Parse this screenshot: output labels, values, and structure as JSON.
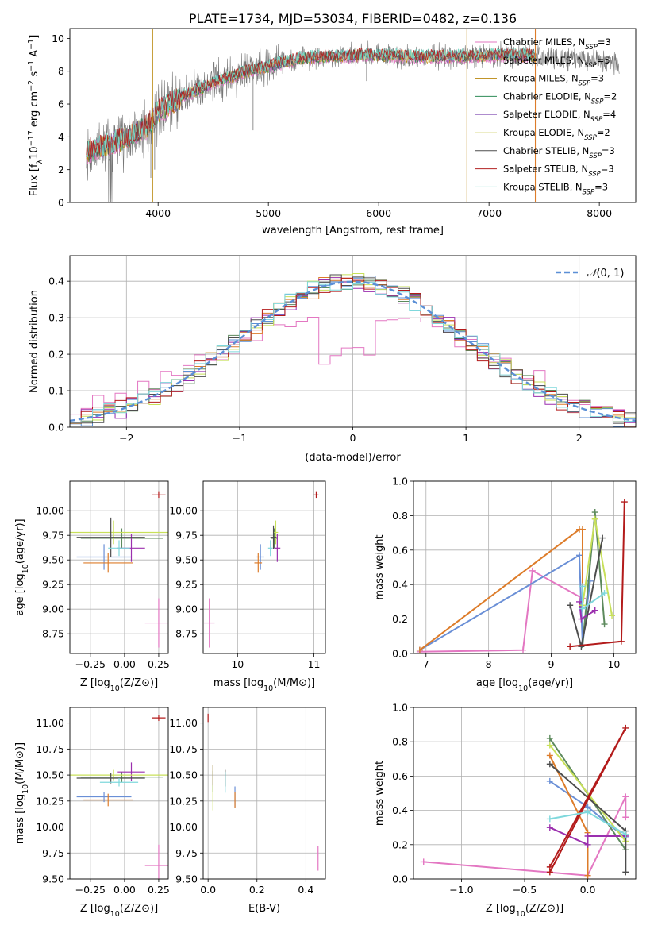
{
  "colors": {
    "Chabrier MILES": "#e377c2",
    "Salpeter MILES": "#e377c2",
    "Kroupa MILES": "#b8860b",
    "Chabrier ELODIE": "#2e8b57",
    "Salpeter ELODIE": "#9467bd",
    "Kroupa ELODIE": "#dbdb8d",
    "Chabrier STELIB": "#4d4d4d",
    "Salpeter STELIB": "#b22222",
    "Kroupa STELIB": "#76d7c4"
  },
  "panel_colors": [
    "#e377c2",
    "#6a8fd6",
    "#dd7c2a",
    "#5d8a5d",
    "#9b2fae",
    "#c8e05a",
    "#4d4d4d",
    "#b31b1b",
    "#7fd8dc"
  ],
  "chart_data": [
    {
      "id": "spectrum",
      "type": "line",
      "title": "PLATE=1734, MJD=53034, FIBERID=0482, z=0.136",
      "xlabel": "wavelength [Angstrom, rest frame]",
      "ylabel_parts": [
        "Flux [f",
        "λ",
        "10",
        "−17",
        " erg cm",
        "−2",
        " s",
        "−1",
        " A",
        "−1",
        "]"
      ],
      "xlim": [
        3200,
        8330
      ],
      "ylim": [
        0,
        10.6
      ],
      "xticks": [
        4000,
        5000,
        6000,
        7000,
        8000
      ],
      "yticks": [
        0,
        2,
        4,
        6,
        8,
        10
      ],
      "grid": false,
      "legend_position": "top-right",
      "legend": [
        {
          "label": "Chabrier MILES, N",
          "sub": "SSP",
          "eq": "=3"
        },
        {
          "label": "Salpeter MILES, N",
          "sub": "SSP",
          "eq": "=5"
        },
        {
          "label": "Kroupa MILES, N",
          "sub": "SSP",
          "eq": "=3"
        },
        {
          "label": "Chabrier ELODIE, N",
          "sub": "SSP",
          "eq": "=2"
        },
        {
          "label": "Salpeter ELODIE, N",
          "sub": "SSP",
          "eq": "=4"
        },
        {
          "label": "Kroupa ELODIE, N",
          "sub": "SSP",
          "eq": "=2"
        },
        {
          "label": "Chabrier STELIB, N",
          "sub": "SSP",
          "eq": "=3"
        },
        {
          "label": "Salpeter STELIB, N",
          "sub": "SSP",
          "eq": "=3"
        },
        {
          "label": "Kroupa STELIB, N",
          "sub": "SSP",
          "eq": "=3"
        }
      ],
      "continuum": {
        "x": [
          3350,
          3500,
          3700,
          3900,
          4000,
          4200,
          4500,
          4800,
          5000,
          5300,
          5600,
          6000,
          6300,
          6600,
          7000,
          7200,
          7400,
          7600,
          8000,
          8200
        ],
        "y": [
          3.1,
          3.4,
          3.9,
          4.6,
          5.5,
          6.4,
          7.3,
          8.0,
          8.3,
          8.8,
          8.9,
          9.0,
          8.9,
          8.9,
          8.95,
          9.0,
          8.95,
          8.8,
          8.6,
          8.5
        ]
      },
      "data_xrange": [
        3350,
        8180
      ],
      "model_xrange": [
        3350,
        7420
      ],
      "vertical_lines": [
        {
          "x": 3950,
          "color": "#b8860b"
        },
        {
          "x": 6800,
          "color": "#b8860b"
        },
        {
          "x": 7420,
          "color": "#dd7c2a"
        }
      ]
    },
    {
      "id": "residuals",
      "type": "histogram",
      "xlabel": "(data-model)/error",
      "ylabel": "Normed distribution",
      "xlim": [
        -2.5,
        2.5
      ],
      "ylim": [
        0,
        0.47
      ],
      "xticks": [
        -2,
        -1,
        0,
        1,
        2
      ],
      "yticks": [
        0.0,
        0.1,
        0.2,
        0.3,
        0.4
      ],
      "grid": true,
      "legend_position": "top-right",
      "legend": {
        "label": "N(0,1)",
        "symbol": "𝒩",
        "args": "(0, 1)",
        "color": "#5b8fd6"
      },
      "bin_width": 0.1,
      "gaussian": {
        "mean": 0,
        "sigma": 1
      }
    },
    {
      "id": "age-vs-Z",
      "type": "scatter",
      "xlabel_parts": [
        "Z [log",
        "10",
        "(Z/Z",
        "⊙",
        ")]"
      ],
      "ylabel_parts": [
        "age  [log",
        "10",
        "(age/yr)]"
      ],
      "xlim": [
        -0.4,
        0.32
      ],
      "ylim": [
        8.55,
        10.3
      ],
      "xticks": [
        -0.25,
        0.0,
        0.25
      ],
      "yticks": [
        8.75,
        9.0,
        9.25,
        9.5,
        9.75,
        10.0
      ],
      "grid": true,
      "points": [
        {
          "x": 0.25,
          "y": 8.86,
          "xerr": 0.1,
          "yerr": 0.25
        },
        {
          "x": -0.15,
          "y": 9.53,
          "xerr": 0.2,
          "yerr": 0.13
        },
        {
          "x": -0.12,
          "y": 9.47,
          "xerr": 0.18,
          "yerr": 0.1
        },
        {
          "x": -0.02,
          "y": 9.72,
          "xerr": 0.3,
          "yerr": 0.1
        },
        {
          "x": 0.05,
          "y": 9.62,
          "xerr": 0.1,
          "yerr": 0.14
        },
        {
          "x": -0.08,
          "y": 9.78,
          "xerr": 0.4,
          "yerr": 0.12
        },
        {
          "x": -0.1,
          "y": 9.73,
          "xerr": 0.25,
          "yerr": 0.2
        },
        {
          "x": 0.25,
          "y": 10.16,
          "xerr": 0.05,
          "yerr": 0.03
        },
        {
          "x": -0.04,
          "y": 9.62,
          "xerr": 0.08,
          "yerr": 0.08
        }
      ]
    },
    {
      "id": "age-vs-mass",
      "type": "scatter",
      "xlabel_parts": [
        "mass [log",
        "10",
        "(M/M",
        "⊙",
        ")]"
      ],
      "xlim": [
        9.55,
        11.15
      ],
      "ylim": [
        8.55,
        10.3
      ],
      "xticks": [
        10,
        11
      ],
      "yticks": [
        8.75,
        9.0,
        9.25,
        9.5,
        9.75,
        10.0
      ],
      "grid": true,
      "points": [
        {
          "x": 9.63,
          "y": 8.86,
          "xerr": 0.07,
          "yerr": 0.25
        },
        {
          "x": 10.3,
          "y": 9.53,
          "xerr": 0.05,
          "yerr": 0.13
        },
        {
          "x": 10.27,
          "y": 9.47,
          "xerr": 0.05,
          "yerr": 0.1
        },
        {
          "x": 10.48,
          "y": 9.72,
          "xerr": 0.04,
          "yerr": 0.1
        },
        {
          "x": 10.52,
          "y": 9.62,
          "xerr": 0.04,
          "yerr": 0.14
        },
        {
          "x": 10.5,
          "y": 9.78,
          "xerr": 0.03,
          "yerr": 0.12
        },
        {
          "x": 10.47,
          "y": 9.73,
          "xerr": 0.04,
          "yerr": 0.12
        },
        {
          "x": 11.03,
          "y": 10.16,
          "xerr": 0.03,
          "yerr": 0.03
        },
        {
          "x": 10.43,
          "y": 9.62,
          "xerr": 0.03,
          "yerr": 0.08
        }
      ]
    },
    {
      "id": "massweight-vs-age",
      "type": "line",
      "xlabel_parts": [
        "age  [log",
        "10",
        "(age/yr)]"
      ],
      "ylabel": "mass weight",
      "xlim": [
        6.8,
        10.35
      ],
      "ylim": [
        0,
        1.0
      ],
      "xticks": [
        7,
        8,
        9,
        10
      ],
      "yticks": [
        0.0,
        0.2,
        0.4,
        0.6,
        0.8,
        1.0
      ],
      "grid": true,
      "series": [
        {
          "x": [
            6.9,
            8.55,
            8.7,
            9.5
          ],
          "y": [
            0.01,
            0.02,
            0.48,
            0.32
          ]
        },
        {
          "x": [
            6.9,
            9.45,
            9.5,
            9.62
          ],
          "y": [
            0.02,
            0.57,
            0.05,
            0.42
          ]
        },
        {
          "x": [
            6.9,
            9.45,
            9.5,
            9.5
          ],
          "y": [
            0.02,
            0.72,
            0.72,
            0.27
          ]
        },
        {
          "x": [
            9.5,
            9.7,
            9.85
          ],
          "y": [
            0.05,
            0.82,
            0.17
          ]
        },
        {
          "x": [
            9.45,
            9.48,
            9.7
          ],
          "y": [
            0.3,
            0.2,
            0.25
          ]
        },
        {
          "x": [
            9.5,
            9.7,
            9.97
          ],
          "y": [
            0.28,
            0.78,
            0.22
          ]
        },
        {
          "x": [
            9.3,
            9.48,
            9.82
          ],
          "y": [
            0.28,
            0.04,
            0.67
          ]
        },
        {
          "x": [
            9.3,
            10.12,
            10.17
          ],
          "y": [
            0.04,
            0.07,
            0.88
          ]
        },
        {
          "x": [
            9.5,
            9.5,
            9.85
          ],
          "y": [
            0.39,
            0.26,
            0.35
          ]
        }
      ]
    },
    {
      "id": "mass-vs-Z",
      "type": "scatter",
      "xlabel_parts": [
        "Z [log",
        "10",
        "(Z/Z",
        "⊙",
        ")]"
      ],
      "ylabel_parts": [
        "mass [log",
        "10",
        "(M/M",
        "⊙",
        ")]"
      ],
      "xlim": [
        -0.4,
        0.32
      ],
      "ylim": [
        9.5,
        11.15
      ],
      "xticks": [
        -0.25,
        0.0,
        0.25
      ],
      "yticks": [
        9.5,
        9.75,
        10.0,
        10.25,
        10.5,
        10.75,
        11.0
      ],
      "grid": true,
      "points": [
        {
          "x": 0.25,
          "y": 9.63,
          "xerr": 0.1,
          "yerr": 0.2
        },
        {
          "x": -0.15,
          "y": 10.29,
          "xerr": 0.2,
          "yerr": 0.05
        },
        {
          "x": -0.12,
          "y": 10.26,
          "xerr": 0.18,
          "yerr": 0.06
        },
        {
          "x": -0.02,
          "y": 10.48,
          "xerr": 0.3,
          "yerr": 0.05
        },
        {
          "x": 0.05,
          "y": 10.53,
          "xerr": 0.1,
          "yerr": 0.09
        },
        {
          "x": -0.08,
          "y": 10.5,
          "xerr": 0.4,
          "yerr": 0.05
        },
        {
          "x": -0.1,
          "y": 10.47,
          "xerr": 0.25,
          "yerr": 0.05
        },
        {
          "x": 0.25,
          "y": 11.05,
          "xerr": 0.05,
          "yerr": 0.03
        },
        {
          "x": -0.04,
          "y": 10.43,
          "xerr": 0.14,
          "yerr": 0.04
        }
      ]
    },
    {
      "id": "mass-vs-EBV",
      "type": "scatter",
      "xlabel": "E(B-V)",
      "xlim": [
        -0.02,
        0.48
      ],
      "ylim": [
        9.5,
        11.15
      ],
      "xticks": [
        0.0,
        0.2,
        0.4
      ],
      "yticks": [
        9.5,
        9.75,
        10.0,
        10.25,
        10.5,
        10.75,
        11.0
      ],
      "grid": true,
      "points": [
        {
          "x": 0.45,
          "y": 9.7,
          "xerr": 0.0,
          "yerr": 0.12
        },
        {
          "x": 0.11,
          "y": 10.29,
          "xerr": 0.0,
          "yerr": 0.1
        },
        {
          "x": 0.11,
          "y": 10.26,
          "xerr": 0.0,
          "yerr": 0.08
        },
        {
          "x": 0.02,
          "y": 10.44,
          "xerr": 0.0,
          "yerr": 0.1
        },
        {
          "x": 0.02,
          "y": 10.5,
          "xerr": 0.0,
          "yerr": 0.1
        },
        {
          "x": 0.02,
          "y": 10.38,
          "xerr": 0.0,
          "yerr": 0.22
        },
        {
          "x": 0.07,
          "y": 10.47,
          "xerr": 0.0,
          "yerr": 0.08
        },
        {
          "x": 0.0,
          "y": 11.05,
          "xerr": 0.0,
          "yerr": 0.04
        },
        {
          "x": 0.07,
          "y": 10.43,
          "xerr": 0.0,
          "yerr": 0.1
        }
      ]
    },
    {
      "id": "massweight-vs-Z",
      "type": "line",
      "xlabel_parts": [
        "Z [log",
        "10",
        "(Z/Z",
        "⊙",
        ")]"
      ],
      "ylabel": "mass weight",
      "xlim": [
        -1.38,
        0.38
      ],
      "ylim": [
        0,
        1.0
      ],
      "xticks": [
        -1.0,
        -0.5,
        0.0
      ],
      "yticks": [
        0.0,
        0.2,
        0.4,
        0.6,
        0.8,
        1.0
      ],
      "grid": true,
      "series": [
        {
          "x": [
            -1.3,
            0.0,
            0.3,
            0.3
          ],
          "y": [
            0.1,
            0.02,
            0.48,
            0.36
          ]
        },
        {
          "x": [
            -0.3,
            0.0,
            0.3
          ],
          "y": [
            0.57,
            0.42,
            0.24
          ]
        },
        {
          "x": [
            -0.3,
            0.0,
            0.0
          ],
          "y": [
            0.72,
            0.27,
            0.02
          ]
        },
        {
          "x": [
            -0.3,
            0.3,
            0.3
          ],
          "y": [
            0.82,
            0.17,
            0.17
          ]
        },
        {
          "x": [
            -0.3,
            0.0,
            0.0,
            0.3
          ],
          "y": [
            0.3,
            0.2,
            0.25,
            0.25
          ]
        },
        {
          "x": [
            -0.3,
            0.3
          ],
          "y": [
            0.78,
            0.22
          ]
        },
        {
          "x": [
            -0.3,
            0.3,
            0.3
          ],
          "y": [
            0.67,
            0.28,
            0.04
          ]
        },
        {
          "x": [
            -0.3,
            0.3,
            -0.3
          ],
          "y": [
            0.07,
            0.88,
            0.04
          ]
        },
        {
          "x": [
            -0.3,
            0.0,
            0.3
          ],
          "y": [
            0.35,
            0.39,
            0.26
          ]
        }
      ]
    }
  ]
}
